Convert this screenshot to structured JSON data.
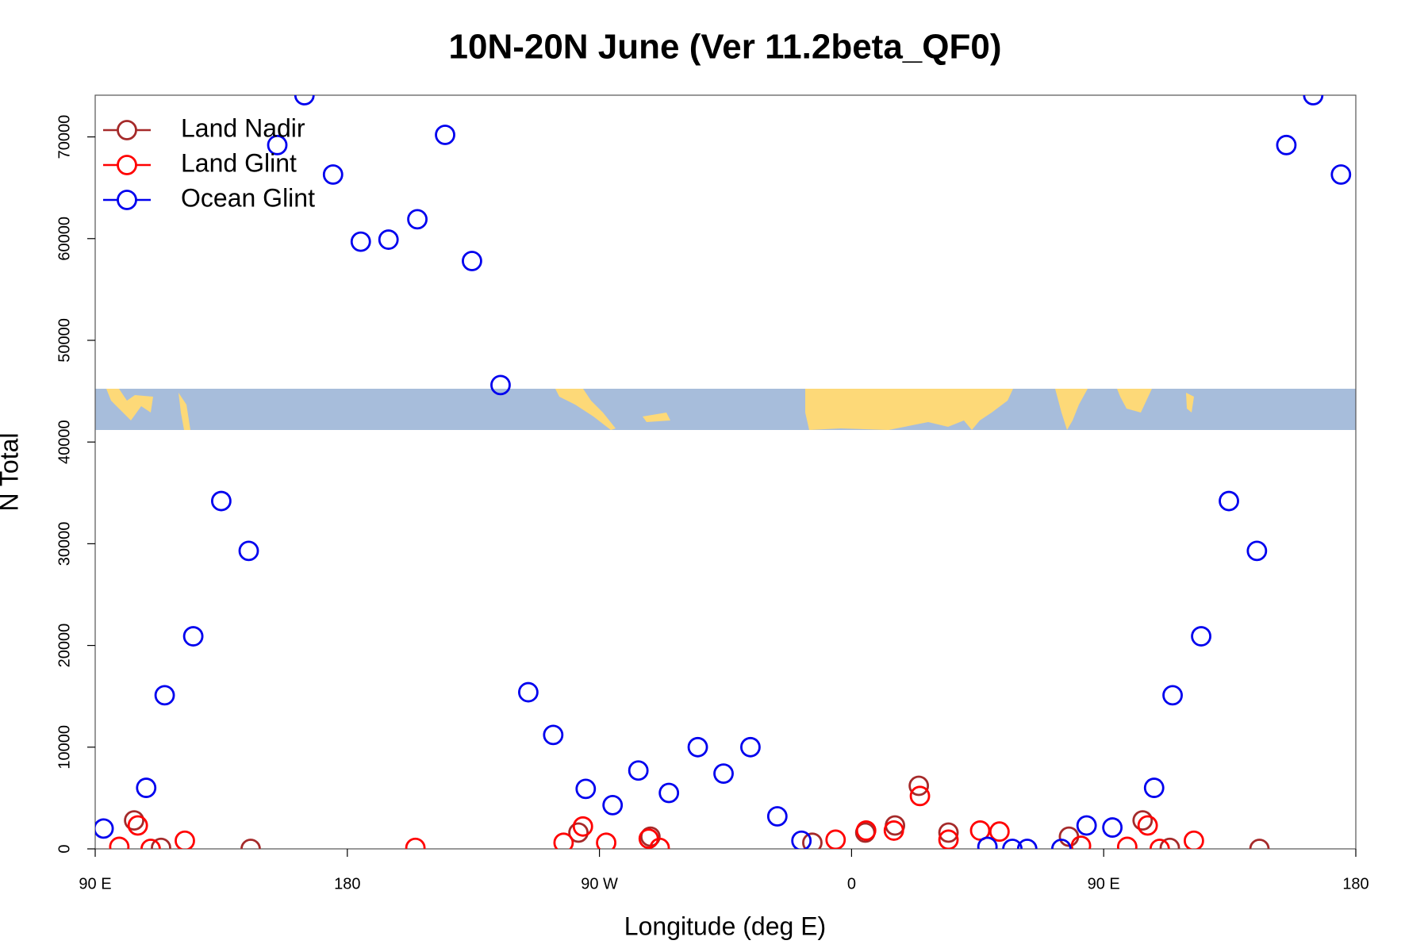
{
  "chart_data": {
    "type": "scatter",
    "title": "10N-20N June (Ver 11.2beta_QF0)",
    "x_label": "Longitude (deg E)",
    "y_label": "N Total",
    "xlim": [
      90,
      540
    ],
    "xticks": [
      {
        "value": 90,
        "label": "90 E"
      },
      180,
      {
        "value": 270,
        "label": "90 W"
      },
      {
        "value": 360,
        "label": "0"
      },
      {
        "value": 450,
        "label": "90 E"
      },
      {
        "value": 540,
        "label": "180"
      }
    ],
    "ylim": [
      0,
      74100
    ],
    "yticks": [
      0,
      10000,
      20000,
      30000,
      40000,
      50000,
      60000,
      70000
    ],
    "legend": "topleft",
    "series": [
      {
        "name": "Land Nadir",
        "color": "#a52a2a",
        "x": [
          103.9,
          113.5,
          145.5,
          262.5,
          288.2,
          346,
          364.9,
          375.5,
          384,
          394.6,
          437.6,
          463.9,
          473.6,
          505.6
        ],
        "values": [
          2800,
          100,
          0,
          1600,
          1200,
          600,
          1600,
          2300,
          6200,
          1600,
          1200,
          2800,
          100,
          0
        ]
      },
      {
        "name": "Land Glint",
        "color": "#ff0000",
        "x": [
          98.6,
          105.2,
          109.8,
          122,
          204.3,
          257.2,
          264.1,
          272.4,
          287.6,
          291.5,
          354.3,
          365.2,
          375.1,
          384.4,
          394.6,
          405.9,
          412.8,
          441.9,
          458.4,
          465.7,
          470,
          482.2
        ],
        "values": [
          200,
          2300,
          0,
          800,
          100,
          600,
          2200,
          600,
          1000,
          100,
          900,
          1800,
          1800,
          5200,
          900,
          1800,
          1700,
          300,
          200,
          2300,
          0,
          800
        ]
      },
      {
        "name": "Ocean Glint",
        "color": "#0000ee",
        "x": [
          93,
          108.2,
          114.8,
          125,
          135,
          144.8,
          155,
          164.7,
          174.9,
          184.8,
          194.7,
          205,
          214.9,
          224.5,
          234.7,
          244.6,
          253.5,
          265.1,
          274.7,
          283.9,
          294.8,
          305.1,
          314.3,
          323.9,
          333.5,
          342.1,
          408.5,
          417.4,
          422.7,
          434.9,
          443.9,
          453.1,
          468,
          474.6,
          484.8,
          494.7,
          504.7,
          515.2,
          524.8,
          534.7
        ],
        "values": [
          2000,
          6000,
          15100,
          20900,
          34200,
          29300,
          69200,
          74100,
          66300,
          59700,
          59900,
          61900,
          70200,
          57800,
          45600,
          15400,
          11200,
          5900,
          4300,
          7700,
          5500,
          10000,
          7400,
          10000,
          3200,
          800,
          200,
          0,
          0,
          0,
          2300,
          2100,
          6000,
          15100,
          20900,
          34200,
          29300,
          69200,
          74100,
          66300
        ]
      }
    ]
  }
}
